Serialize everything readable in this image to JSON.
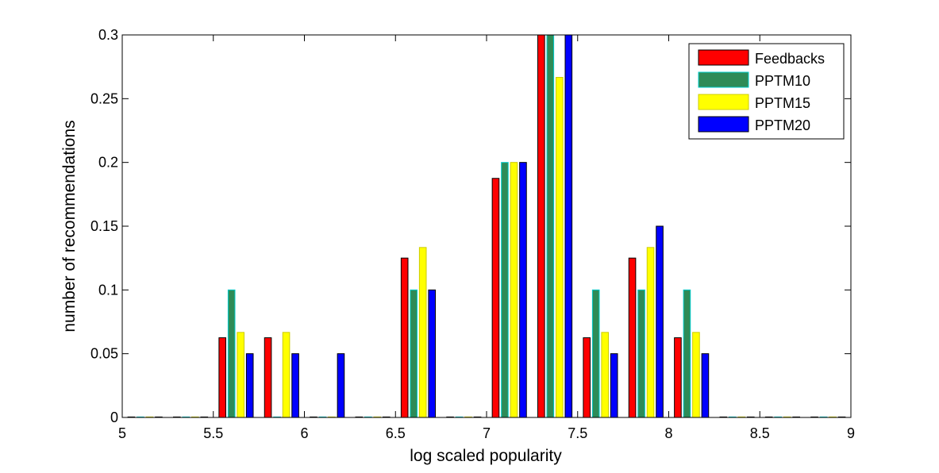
{
  "chart_data": {
    "type": "bar",
    "title": "",
    "xlabel": "log scaled popularity",
    "ylabel": "number of recommendations",
    "xlim": [
      5,
      9
    ],
    "ylim": [
      0,
      0.3
    ],
    "xticks": [
      "5",
      "5.5",
      "6",
      "6.5",
      "7",
      "7.5",
      "8",
      "8.5",
      "9"
    ],
    "yticks": [
      "0",
      "0.05",
      "0.1",
      "0.15",
      "0.2",
      "0.25",
      "0.3"
    ],
    "bin_centers": [
      5.125,
      5.375,
      5.625,
      5.875,
      6.125,
      6.375,
      6.625,
      6.875,
      7.125,
      7.375,
      7.625,
      7.875,
      8.125,
      8.375,
      8.625,
      8.875
    ],
    "legend_position": "top-right",
    "grid": false,
    "series": [
      {
        "name": "Feedbacks",
        "color": "#ff0000",
        "edge": "#000000",
        "values": [
          0,
          0,
          0.0625,
          0.0625,
          0,
          0,
          0.125,
          0,
          0.1875,
          0.3,
          0.0625,
          0.125,
          0.0625,
          0,
          0,
          0
        ]
      },
      {
        "name": "PPTM10",
        "color": "#2e8b57",
        "edge": "#00cccc",
        "values": [
          0,
          0,
          0.1,
          0,
          0,
          0,
          0.1,
          0,
          0.2,
          0.3,
          0.1,
          0.1,
          0.1,
          0,
          0,
          0
        ]
      },
      {
        "name": "PPTM15",
        "color": "#ffff00",
        "edge": "#cccc00",
        "values": [
          0,
          0,
          0.0667,
          0.0667,
          0,
          0,
          0.1333,
          0,
          0.2,
          0.2667,
          0.0667,
          0.1333,
          0.0667,
          0,
          0,
          0
        ]
      },
      {
        "name": "PPTM20",
        "color": "#0000ff",
        "edge": "#000000",
        "values": [
          0,
          0,
          0.05,
          0.05,
          0.05,
          0,
          0.1,
          0,
          0.2,
          0.3,
          0.05,
          0.15,
          0.05,
          0,
          0,
          0
        ]
      }
    ]
  }
}
